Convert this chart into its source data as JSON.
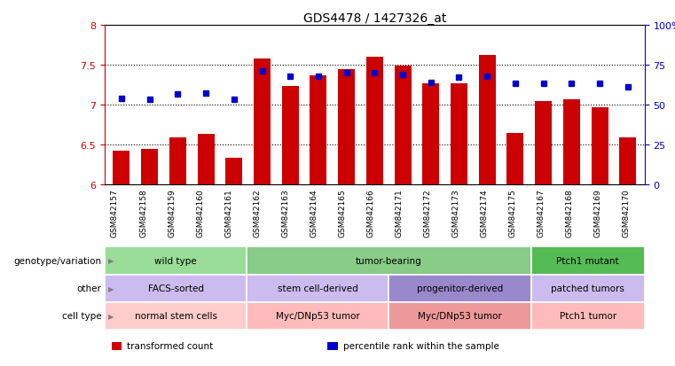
{
  "title": "GDS4478 / 1427326_at",
  "samples": [
    "GSM842157",
    "GSM842158",
    "GSM842159",
    "GSM842160",
    "GSM842161",
    "GSM842162",
    "GSM842163",
    "GSM842164",
    "GSM842165",
    "GSM842166",
    "GSM842171",
    "GSM842172",
    "GSM842173",
    "GSM842174",
    "GSM842175",
    "GSM842167",
    "GSM842168",
    "GSM842169",
    "GSM842170"
  ],
  "bar_values": [
    6.42,
    6.44,
    6.59,
    6.63,
    6.33,
    7.58,
    7.23,
    7.37,
    7.44,
    7.6,
    7.49,
    7.27,
    7.27,
    7.62,
    6.64,
    7.05,
    7.07,
    6.97,
    6.59
  ],
  "dot_values": [
    7.08,
    7.07,
    7.13,
    7.15,
    7.07,
    7.42,
    7.36,
    7.36,
    7.4,
    7.4,
    7.38,
    7.28,
    7.35,
    7.36,
    7.27,
    7.27,
    7.27,
    7.27,
    7.22
  ],
  "bar_base": 6.0,
  "ylim_left": [
    6.0,
    8.0
  ],
  "ylim_right": [
    0,
    100
  ],
  "yticks_left": [
    6.0,
    6.5,
    7.0,
    7.5,
    8.0
  ],
  "yticks_right": [
    0,
    25,
    50,
    75,
    100
  ],
  "ytick_labels_right": [
    "0",
    "25",
    "50",
    "75",
    "100%"
  ],
  "ytick_labels_left": [
    "6",
    "6.5",
    "7",
    "7.5",
    "8"
  ],
  "bar_color": "#cc0000",
  "dot_color": "#0000cc",
  "groups": [
    {
      "label": "wild type",
      "start": 0,
      "end": 5,
      "color": "#99dd99"
    },
    {
      "label": "tumor-bearing",
      "start": 5,
      "end": 15,
      "color": "#88cc88"
    },
    {
      "label": "Ptch1 mutant",
      "start": 15,
      "end": 19,
      "color": "#55bb55"
    }
  ],
  "other_groups": [
    {
      "label": "FACS-sorted",
      "start": 0,
      "end": 5,
      "color": "#ccbbee"
    },
    {
      "label": "stem cell-derived",
      "start": 5,
      "end": 10,
      "color": "#ccbbee"
    },
    {
      "label": "progenitor-derived",
      "start": 10,
      "end": 15,
      "color": "#9988cc"
    },
    {
      "label": "patched tumors",
      "start": 15,
      "end": 19,
      "color": "#ccbbee"
    }
  ],
  "cell_groups": [
    {
      "label": "normal stem cells",
      "start": 0,
      "end": 5,
      "color": "#ffcccc"
    },
    {
      "label": "Myc/DNp53 tumor",
      "start": 5,
      "end": 10,
      "color": "#ffbbbb"
    },
    {
      "label": "Myc/DNp53 tumor",
      "start": 10,
      "end": 15,
      "color": "#ee9999"
    },
    {
      "label": "Ptch1 tumor",
      "start": 15,
      "end": 19,
      "color": "#ffbbbb"
    }
  ],
  "row_labels": [
    "genotype/variation",
    "other",
    "cell type"
  ],
  "legend_items": [
    {
      "color": "#cc0000",
      "label": "transformed count"
    },
    {
      "color": "#0000cc",
      "label": "percentile rank within the sample"
    }
  ],
  "bg_color": "#ffffff",
  "tick_color_left": "#cc0000",
  "tick_color_right": "#0000cc"
}
